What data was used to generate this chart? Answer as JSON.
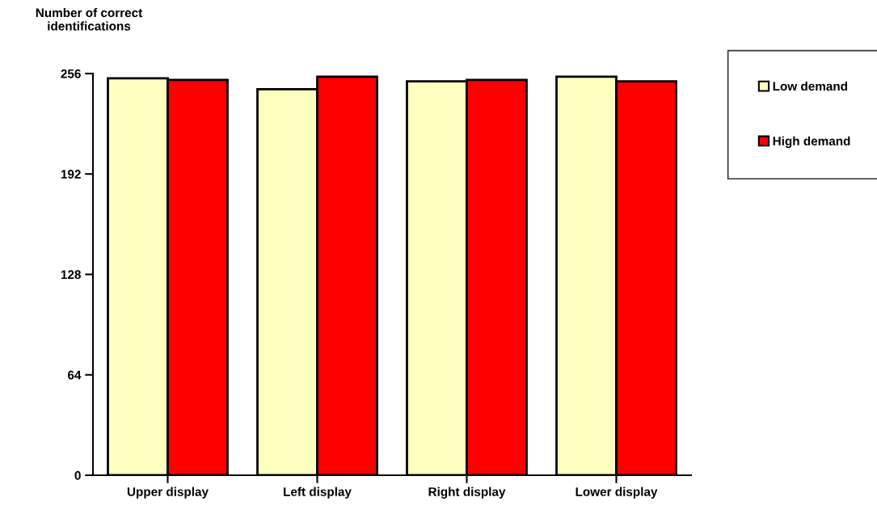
{
  "chart_data": {
    "type": "bar",
    "ylabel": "Number of correct identifications",
    "categories": [
      "Upper display",
      "Left display",
      "Right display",
      "Lower display"
    ],
    "series": [
      {
        "name": "Low demand",
        "color": "#ffffc0",
        "values": [
          253,
          246,
          251,
          254
        ]
      },
      {
        "name": "High demand",
        "color": "#ff0000",
        "values": [
          252,
          254,
          252,
          251
        ]
      }
    ],
    "ylim": [
      0,
      256
    ],
    "yticks": [
      0,
      64,
      128,
      192,
      256
    ],
    "grid": false,
    "legend": "right"
  }
}
